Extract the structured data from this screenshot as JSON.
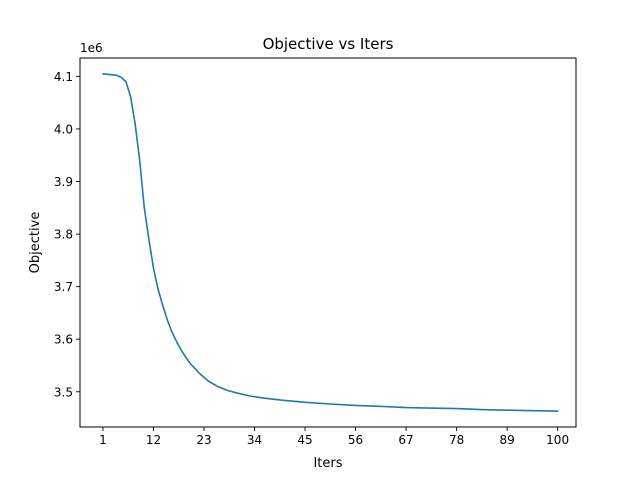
{
  "chart_data": {
    "type": "line",
    "title": "Objective vs Iters",
    "xlabel": "Iters",
    "ylabel": "Objective",
    "y_offset_label": "1e6",
    "y_multiplier": 1000000,
    "xlim": [
      -4,
      104
    ],
    "ylim": [
      3.433,
      4.135
    ],
    "xticks": [
      1,
      12,
      23,
      34,
      45,
      56,
      67,
      78,
      89,
      100
    ],
    "yticks": [
      3.5,
      3.6,
      3.7,
      3.8,
      3.9,
      4.0,
      4.1
    ],
    "ytick_labels": [
      "3.5",
      "3.6",
      "3.7",
      "3.8",
      "3.9",
      "4.0",
      "4.1"
    ],
    "grid": false,
    "series": [
      {
        "color": "#1f77b4",
        "x": [
          1,
          2,
          3,
          4,
          5,
          6,
          7,
          8,
          9,
          10,
          11,
          12,
          13,
          14,
          15,
          16,
          17,
          18,
          19,
          20,
          22,
          24,
          26,
          28,
          30,
          33,
          36,
          40,
          45,
          50,
          56,
          62,
          67,
          72,
          78,
          84,
          89,
          95,
          100
        ],
        "y": [
          4.105,
          4.104,
          4.103,
          4.102,
          4.098,
          4.09,
          4.062,
          4.01,
          3.94,
          3.85,
          3.79,
          3.735,
          3.695,
          3.665,
          3.637,
          3.614,
          3.596,
          3.58,
          3.566,
          3.554,
          3.535,
          3.52,
          3.51,
          3.503,
          3.498,
          3.492,
          3.488,
          3.484,
          3.48,
          3.477,
          3.474,
          3.472,
          3.47,
          3.469,
          3.468,
          3.466,
          3.465,
          3.464,
          3.463
        ]
      }
    ]
  }
}
